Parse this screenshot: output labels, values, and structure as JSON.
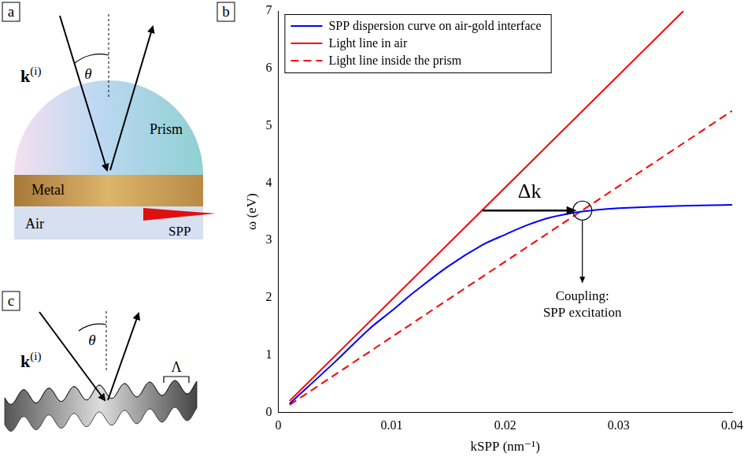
{
  "chart_data": {
    "type": "line",
    "panel": "b",
    "x_label": "kSPP (nm⁻¹)",
    "y_label": "ω (eV)",
    "xlim": [
      0,
      0.04
    ],
    "xticks": [
      0,
      0.01,
      0.02,
      0.03,
      0.04
    ],
    "ylim": [
      0,
      7
    ],
    "yticks": [
      0,
      1,
      2,
      3,
      4,
      5,
      6,
      7
    ],
    "grid": false,
    "legend": "upper left",
    "series": [
      {
        "name": "SPP dispersion curve on air-gold interface",
        "color": "#0000ff",
        "line_style": "solid",
        "x": [
          0.001,
          0.005,
          0.008,
          0.01,
          0.012,
          0.015,
          0.018,
          0.02,
          0.022,
          0.024,
          0.026,
          0.028,
          0.03,
          0.035,
          0.04
        ],
        "values": [
          0.15,
          0.88,
          1.45,
          1.77,
          2.1,
          2.55,
          2.92,
          3.1,
          3.27,
          3.4,
          3.48,
          3.53,
          3.56,
          3.6,
          3.62
        ]
      },
      {
        "name": "Light line in air",
        "color": "#ff0000",
        "line_style": "solid",
        "x": [
          0.001,
          0.0357
        ],
        "values": [
          0.2,
          7.0
        ]
      },
      {
        "name": "Light line inside the prism",
        "color": "#ff0000",
        "line_style": "dashed",
        "x": [
          0.001,
          0.04
        ],
        "values": [
          0.13,
          5.26
        ]
      }
    ],
    "annotations": [
      {
        "type": "arrow",
        "text": "Δk",
        "x": [
          0.018,
          0.0263
        ],
        "y": [
          3.52,
          3.52
        ]
      },
      {
        "type": "circle_arrow",
        "text": [
          "Coupling:",
          "SPP excitation"
        ],
        "x": 0.0268,
        "y": 3.52,
        "to_y": 2.25
      }
    ]
  },
  "diagrams": {
    "a": {
      "letter": "a",
      "prism": "Prism",
      "metal": "Metal",
      "air": "Air",
      "spp": "SPP",
      "wave_vector": {
        "base": "k",
        "sup": "(i)"
      },
      "angle": "θ"
    },
    "c": {
      "letter": "c",
      "wave_vector": {
        "base": "k",
        "sup": "(i)"
      },
      "angle": "θ",
      "period": "Λ"
    }
  }
}
